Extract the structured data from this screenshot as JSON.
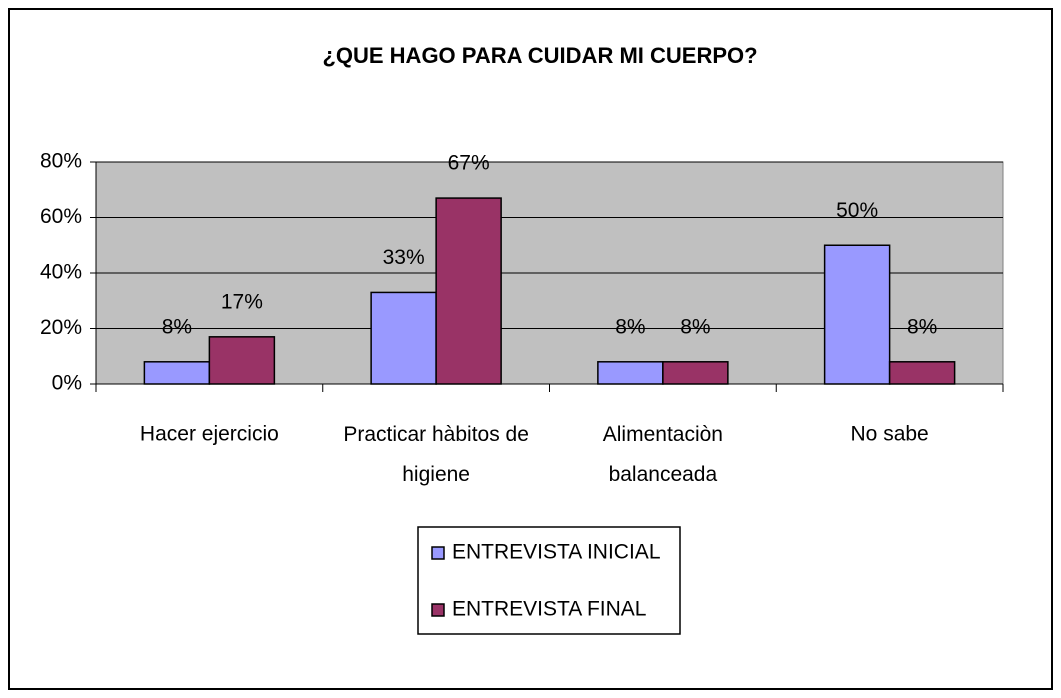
{
  "chart_data": {
    "type": "bar",
    "title": "¿QUE HAGO PARA CUIDAR MI CUERPO?",
    "categories": [
      "Hacer ejercicio",
      "Practicar hàbitos de higiene",
      "Alimentaciòn balanceada",
      "No sabe"
    ],
    "series": [
      {
        "name": "ENTREVISTA INICIAL",
        "color": "#9999ff",
        "values": [
          8,
          33,
          8,
          50
        ],
        "value_labels": [
          "8%",
          "33%",
          "8%",
          "50%"
        ]
      },
      {
        "name": "ENTREVISTA FINAL",
        "color": "#993366",
        "values": [
          17,
          67,
          8,
          8
        ],
        "value_labels": [
          "17%",
          "67%",
          "8%",
          "8%"
        ]
      }
    ],
    "ylim": [
      0,
      80
    ],
    "yticks": [
      {
        "value": 0,
        "label": "0%"
      },
      {
        "value": 20,
        "label": "20%"
      },
      {
        "value": 40,
        "label": "40%"
      },
      {
        "value": 60,
        "label": "60%"
      },
      {
        "value": 80,
        "label": "80%"
      }
    ],
    "grid": true,
    "legend": "bottom"
  }
}
